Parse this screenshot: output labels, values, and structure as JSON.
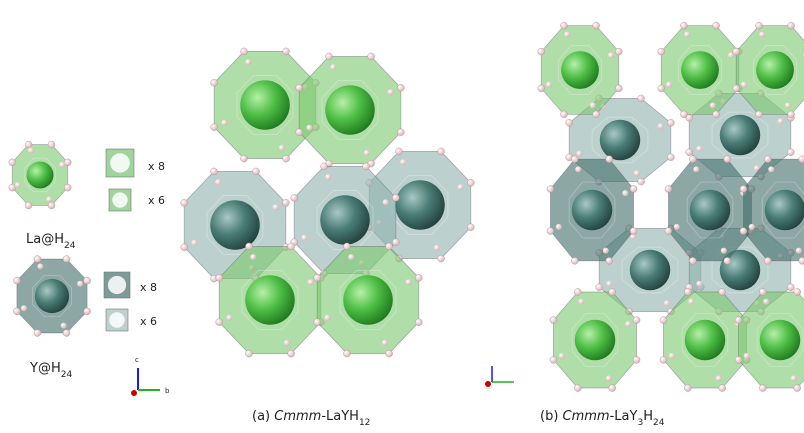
{
  "left": {
    "la": {
      "parts": [
        {
          "t": "La@H"
        },
        {
          "t": "24",
          "sub": true
        }
      ],
      "counts": [
        "x 8",
        "x 6"
      ]
    },
    "y": {
      "parts": [
        {
          "t": "Y@H"
        },
        {
          "t": "24",
          "sub": true
        }
      ],
      "counts": [
        "x 8",
        "x 6"
      ]
    },
    "axes": {
      "c": "c",
      "b": "b"
    }
  },
  "captions": [
    {
      "parts": [
        {
          "t": "(a) "
        },
        {
          "t": "Cmmm",
          "italic": true
        },
        {
          "t": "-LaYH"
        },
        {
          "t": "12",
          "sub": true
        }
      ]
    },
    {
      "parts": [
        {
          "t": "(b) "
        },
        {
          "t": "Cmmm",
          "italic": true
        },
        {
          "t": "-LaY"
        },
        {
          "t": "3",
          "sub": true
        },
        {
          "t": "H"
        },
        {
          "t": "24",
          "sub": true
        }
      ]
    }
  ]
}
